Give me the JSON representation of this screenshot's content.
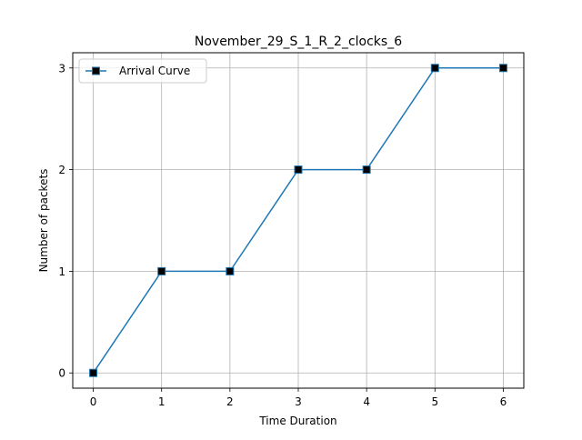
{
  "chart_data": {
    "type": "line",
    "title": "November_29_S_1_R_2_clocks_6",
    "xlabel": "Time Duration",
    "ylabel": "Number of packets",
    "x": [
      0,
      1,
      2,
      3,
      4,
      5,
      6
    ],
    "series": [
      {
        "name": "Arrival Curve",
        "values": [
          0,
          1,
          1,
          2,
          2,
          3,
          3
        ],
        "color": "#1f77b4",
        "marker": "square",
        "marker_color": "#000000"
      }
    ],
    "xlim": [
      -0.3,
      6.3
    ],
    "ylim": [
      -0.15,
      3.15
    ],
    "xticks": [
      0,
      1,
      2,
      3,
      4,
      5,
      6
    ],
    "yticks": [
      0,
      1,
      2,
      3
    ],
    "xtick_labels": [
      "0",
      "1",
      "2",
      "3",
      "4",
      "5",
      "6"
    ],
    "ytick_labels": [
      "0",
      "1",
      "2",
      "3"
    ],
    "grid": true,
    "legend_position": "top-left"
  }
}
